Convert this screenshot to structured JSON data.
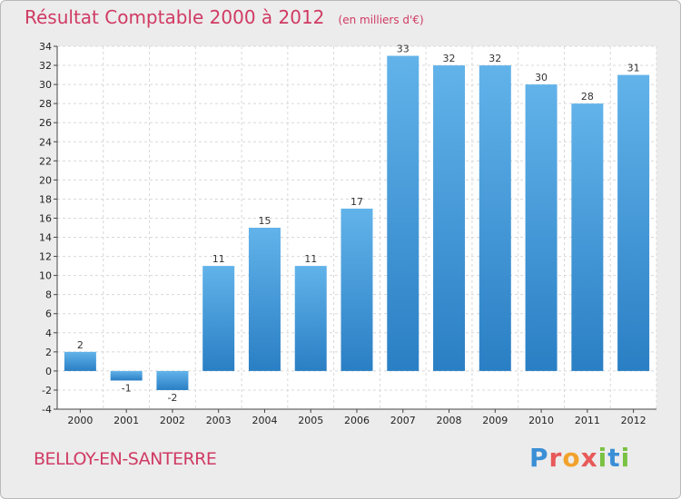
{
  "header": {
    "title": "Résultat Comptable 2000 à 2012",
    "unit": "(en milliers d'€)"
  },
  "footer": {
    "commune": "BELLOY-EN-SANTERRE",
    "brand": [
      "P",
      "r",
      "o",
      "x",
      "i",
      "t",
      "i"
    ]
  },
  "colors": {
    "bar_top": "#62b3ea",
    "bar_bottom": "#2a7fc4",
    "title": "#d03a63",
    "grid": "#d8d8d8",
    "plot_bg": "#ffffff"
  },
  "chart_data": {
    "type": "bar",
    "title": "Résultat Comptable 2000 à 2012 (en milliers d'€)",
    "categories": [
      "2000",
      "2001",
      "2002",
      "2003",
      "2004",
      "2005",
      "2006",
      "2007",
      "2008",
      "2009",
      "2010",
      "2011",
      "2012"
    ],
    "values": [
      2,
      -1,
      -2,
      11,
      15,
      11,
      17,
      33,
      32,
      32,
      30,
      28,
      31
    ],
    "ylim": [
      -4,
      34
    ],
    "yticks": [
      -4,
      -2,
      0,
      2,
      4,
      6,
      8,
      10,
      12,
      14,
      16,
      18,
      20,
      22,
      24,
      26,
      28,
      30,
      32,
      34
    ],
    "xlabel": "",
    "ylabel": "",
    "grid": true,
    "legend": "none"
  }
}
